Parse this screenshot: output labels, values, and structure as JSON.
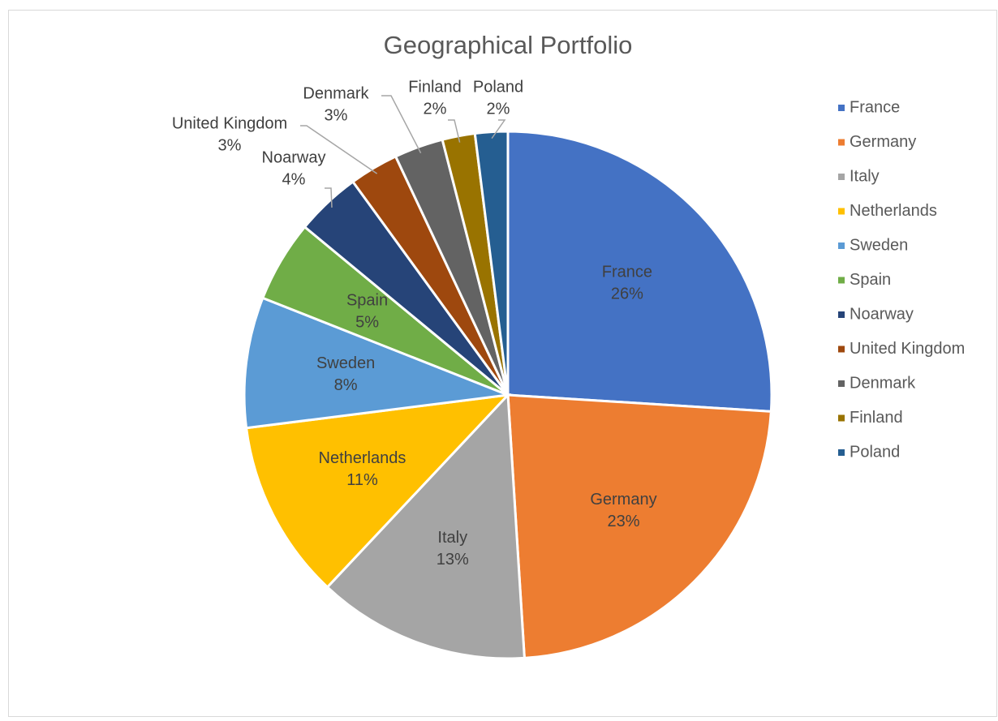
{
  "chart_data": {
    "type": "pie",
    "title": "Geographical Portfolio",
    "categories": [
      "France",
      "Germany",
      "Italy",
      "Netherlands",
      "Sweden",
      "Spain",
      "Noarway",
      "United Kingdom",
      "Denmark",
      "Finland",
      "Poland"
    ],
    "values": [
      26,
      23,
      13,
      11,
      8,
      5,
      4,
      3,
      3,
      2,
      2
    ],
    "value_labels": [
      "26%",
      "23%",
      "13%",
      "11%",
      "8%",
      "5%",
      "4%",
      "3%",
      "3%",
      "2%",
      "2%"
    ],
    "colors": [
      "#4472c4",
      "#ed7d31",
      "#a5a5a5",
      "#ffc000",
      "#5b9bd5",
      "#70ad47",
      "#264478",
      "#9e480e",
      "#636363",
      "#997300",
      "#255e91"
    ],
    "legend": "right"
  }
}
